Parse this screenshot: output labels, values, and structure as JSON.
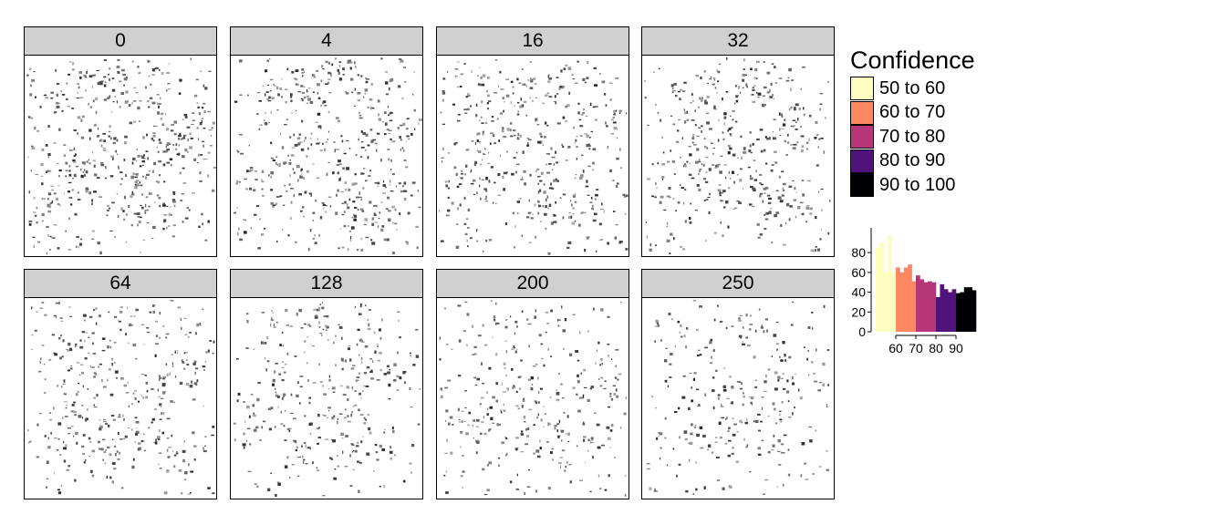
{
  "panels": [
    {
      "label": "0"
    },
    {
      "label": "4"
    },
    {
      "label": "16"
    },
    {
      "label": "32"
    },
    {
      "label": "64"
    },
    {
      "label": "128"
    },
    {
      "label": "200"
    },
    {
      "label": "250"
    }
  ],
  "legend": {
    "title": "Confidence",
    "entries": [
      {
        "label": "50 to 60",
        "color": "#fcfdbf"
      },
      {
        "label": "60 to 70",
        "color": "#fc8761"
      },
      {
        "label": "70 to 80",
        "color": "#b63679"
      },
      {
        "label": "80 to 90",
        "color": "#50127b"
      },
      {
        "label": "90 to 100",
        "color": "#000004"
      }
    ]
  },
  "chart_data": {
    "type": "bar",
    "xlim": [
      50,
      100
    ],
    "ylim": [
      0,
      105
    ],
    "x_ticks": [
      60,
      70,
      80,
      90
    ],
    "y_ticks": [
      0,
      20,
      40,
      60,
      80
    ],
    "bins": [
      {
        "x0": 50,
        "x1": 52,
        "value": 85,
        "color": "#fcfdbf"
      },
      {
        "x0": 52,
        "x1": 54,
        "value": 90,
        "color": "#fcfdbf"
      },
      {
        "x0": 54,
        "x1": 56,
        "value": 60,
        "color": "#fcfdbf"
      },
      {
        "x0": 56,
        "x1": 58,
        "value": 98,
        "color": "#fcfdbf"
      },
      {
        "x0": 58,
        "x1": 60,
        "value": 60,
        "color": "#fcfdbf"
      },
      {
        "x0": 60,
        "x1": 62,
        "value": 65,
        "color": "#fc8761"
      },
      {
        "x0": 62,
        "x1": 64,
        "value": 60,
        "color": "#fc8761"
      },
      {
        "x0": 64,
        "x1": 66,
        "value": 65,
        "color": "#fc8761"
      },
      {
        "x0": 66,
        "x1": 68,
        "value": 68,
        "color": "#fc8761"
      },
      {
        "x0": 68,
        "x1": 70,
        "value": 51,
        "color": "#fc8761"
      },
      {
        "x0": 70,
        "x1": 72,
        "value": 57,
        "color": "#b63679"
      },
      {
        "x0": 72,
        "x1": 74,
        "value": 53,
        "color": "#b63679"
      },
      {
        "x0": 74,
        "x1": 76,
        "value": 50,
        "color": "#b63679"
      },
      {
        "x0": 76,
        "x1": 78,
        "value": 51,
        "color": "#b63679"
      },
      {
        "x0": 78,
        "x1": 80,
        "value": 50,
        "color": "#b63679"
      },
      {
        "x0": 80,
        "x1": 82,
        "value": 35,
        "color": "#50127b"
      },
      {
        "x0": 82,
        "x1": 84,
        "value": 48,
        "color": "#50127b"
      },
      {
        "x0": 84,
        "x1": 86,
        "value": 43,
        "color": "#50127b"
      },
      {
        "x0": 86,
        "x1": 88,
        "value": 40,
        "color": "#50127b"
      },
      {
        "x0": 88,
        "x1": 90,
        "value": 43,
        "color": "#50127b"
      },
      {
        "x0": 90,
        "x1": 92,
        "value": 39,
        "color": "#000004"
      },
      {
        "x0": 92,
        "x1": 94,
        "value": 40,
        "color": "#000004"
      },
      {
        "x0": 94,
        "x1": 96,
        "value": 45,
        "color": "#000004"
      },
      {
        "x0": 96,
        "x1": 98,
        "value": 45,
        "color": "#000004"
      },
      {
        "x0": 98,
        "x1": 100,
        "value": 42,
        "color": "#000004"
      }
    ]
  }
}
